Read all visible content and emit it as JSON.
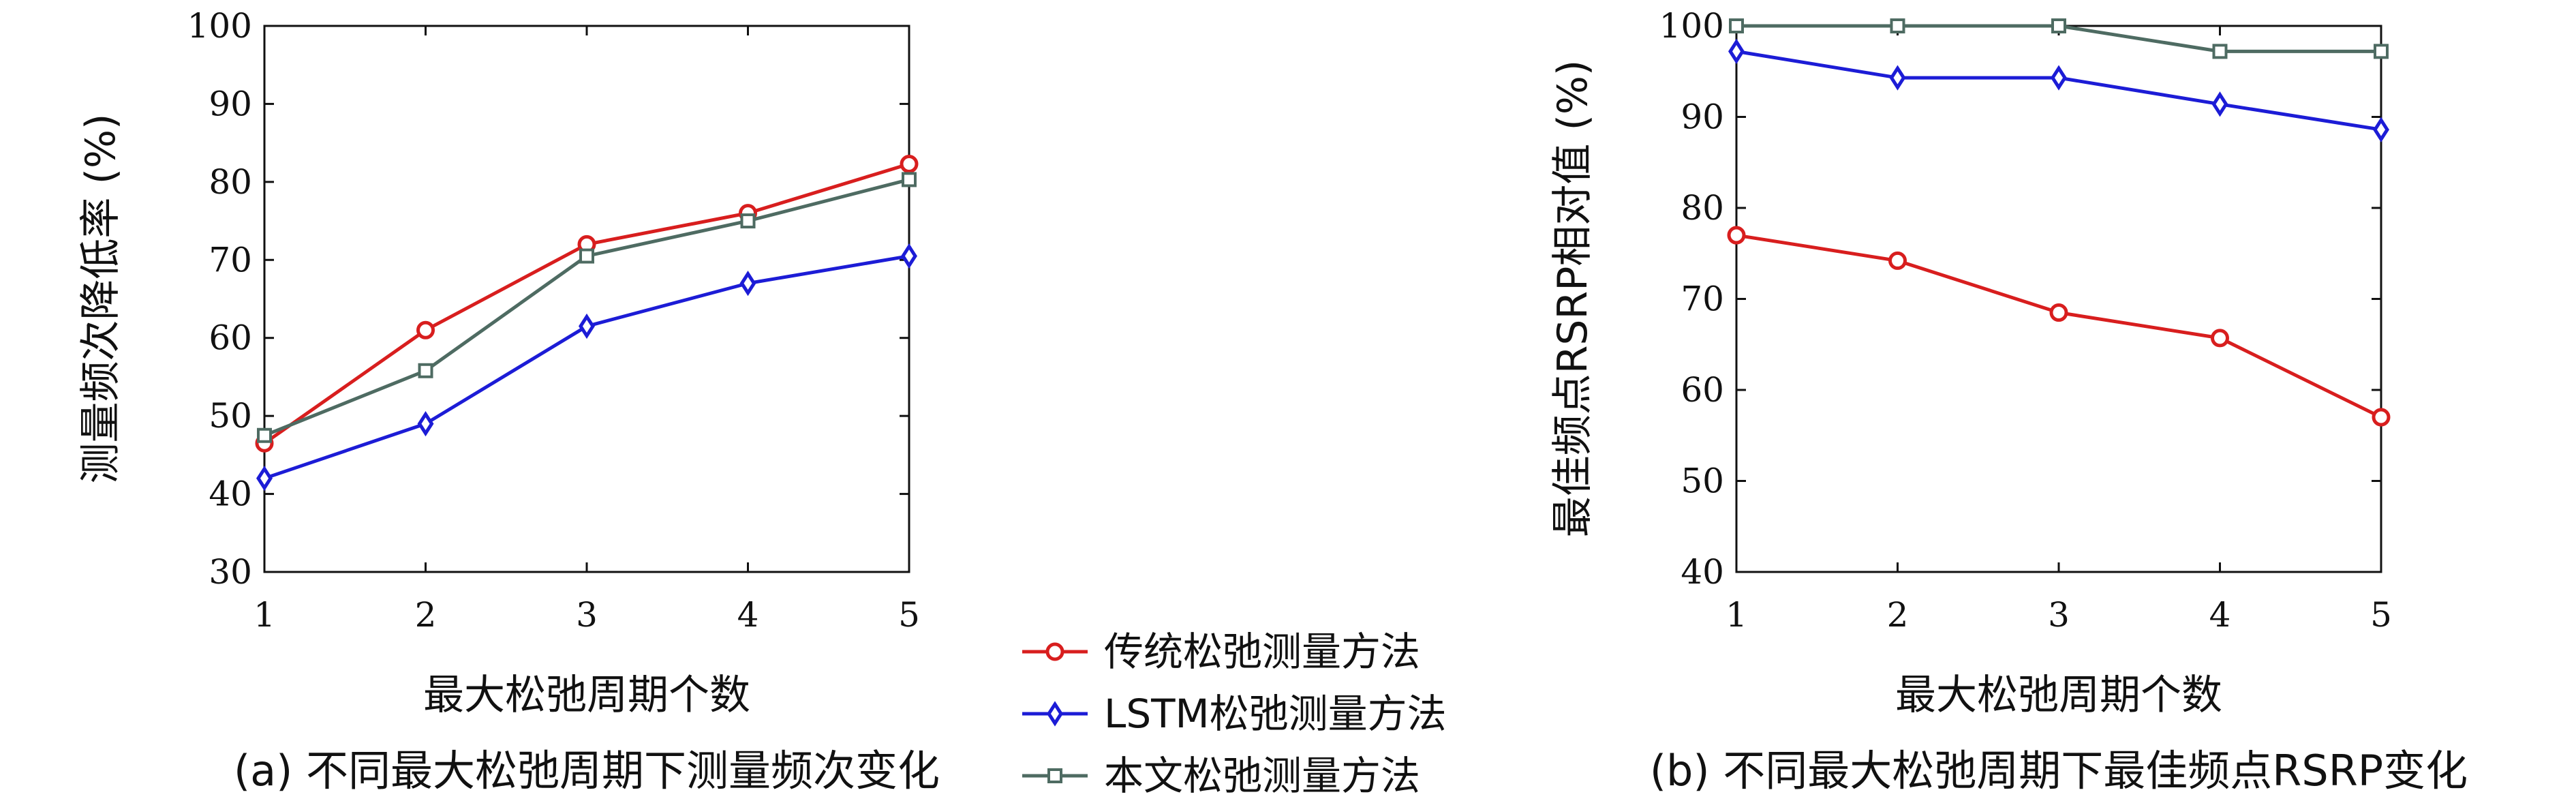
{
  "legend": [
    {
      "label": "传统松弛测量方法",
      "color": "#d81e1e",
      "marker": "circle"
    },
    {
      "label": "LSTM松弛测量方法",
      "color": "#1c1cd6",
      "marker": "diamond"
    },
    {
      "label": "本文松弛测量方法",
      "color": "#4e6b62",
      "marker": "square"
    }
  ],
  "chart_data": [
    {
      "type": "line",
      "caption": "(a) 不同最大松弛周期下测量频次变化",
      "xlabel": "最大松弛周期个数",
      "ylabel": "测量频次降低率 (%)",
      "x": [
        1,
        2,
        3,
        4,
        5
      ],
      "xlim": [
        1,
        5
      ],
      "ylim": [
        30,
        100
      ],
      "yticks": [
        30,
        40,
        50,
        60,
        70,
        80,
        90,
        100
      ],
      "grid": false,
      "series": [
        {
          "name": "传统松弛测量方法",
          "values": [
            46.5,
            61,
            72,
            76,
            82.3
          ]
        },
        {
          "name": "LSTM松弛测量方法",
          "values": [
            42,
            49,
            61.5,
            67,
            70.5
          ]
        },
        {
          "name": "本文松弛测量方法",
          "values": [
            47.5,
            55.8,
            70.5,
            75,
            80.3
          ]
        }
      ]
    },
    {
      "type": "line",
      "caption": "(b) 不同最大松弛周期下最佳频点RSRP变化",
      "xlabel": "最大松弛周期个数",
      "ylabel": "最佳频点RSRP相对值 (%)",
      "x": [
        1,
        2,
        3,
        4,
        5
      ],
      "xlim": [
        1,
        5
      ],
      "ylim": [
        40,
        100
      ],
      "yticks": [
        40,
        50,
        60,
        70,
        80,
        90,
        100
      ],
      "grid": false,
      "series": [
        {
          "name": "传统松弛测量方法",
          "values": [
            77,
            74.2,
            68.5,
            65.7,
            57
          ]
        },
        {
          "name": "LSTM松弛测量方法",
          "values": [
            97.2,
            94.3,
            94.3,
            91.4,
            88.6
          ]
        },
        {
          "name": "本文松弛测量方法",
          "values": [
            100,
            100,
            100,
            97.2,
            97.2
          ]
        }
      ]
    }
  ]
}
